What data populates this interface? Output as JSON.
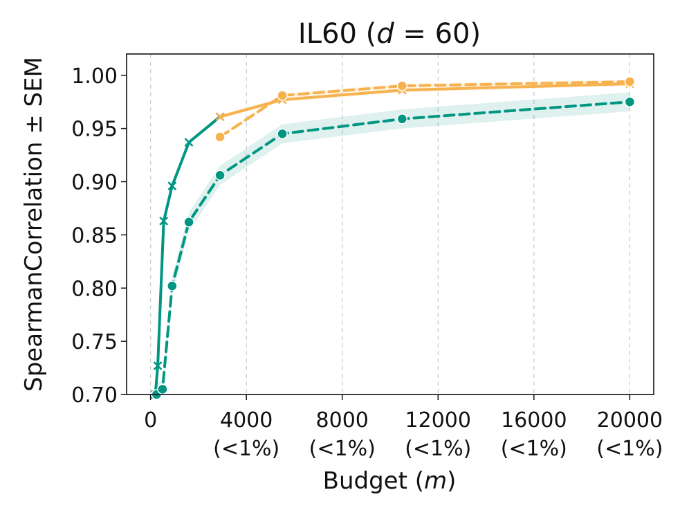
{
  "chart_data": {
    "type": "line",
    "title": "IL60 (d = 60)",
    "title_parts": {
      "prefix": "IL60 (",
      "var": "d",
      "suffix": " = 60)"
    },
    "xlabel": "Budget (m)",
    "xlabel_parts": {
      "prefix": "Budget (",
      "var": "m",
      "suffix": ")"
    },
    "ylabel": "SpearmanCorrelation ± SEM",
    "xlim": [
      -1000,
      21000
    ],
    "ylim": [
      0.7,
      1.02
    ],
    "xticks": [
      {
        "value": 0,
        "label": "0",
        "sub": ""
      },
      {
        "value": 4000,
        "label": "4000",
        "sub": "(<1%)"
      },
      {
        "value": 8000,
        "label": "8000",
        "sub": "(<1%)"
      },
      {
        "value": 12000,
        "label": "12000",
        "sub": "(<1%)"
      },
      {
        "value": 16000,
        "label": "16000",
        "sub": "(<1%)"
      },
      {
        "value": 20000,
        "label": "20000",
        "sub": "(<1%)"
      }
    ],
    "yticks": [
      {
        "value": 0.7,
        "label": "0.70"
      },
      {
        "value": 0.75,
        "label": "0.75"
      },
      {
        "value": 0.8,
        "label": "0.80"
      },
      {
        "value": 0.85,
        "label": "0.85"
      },
      {
        "value": 0.9,
        "label": "0.90"
      },
      {
        "value": 0.95,
        "label": "0.95"
      },
      {
        "value": 1.0,
        "label": "1.00"
      }
    ],
    "grid": "vertical-dashed",
    "series": [
      {
        "name": "teal-solid-x",
        "color": "#009682",
        "dash": "solid",
        "marker": "x",
        "points": [
          {
            "x": 200,
            "y": 0.7
          },
          {
            "x": 300,
            "y": 0.727
          },
          {
            "x": 550,
            "y": 0.863
          },
          {
            "x": 900,
            "y": 0.896
          },
          {
            "x": 1600,
            "y": 0.937
          },
          {
            "x": 2900,
            "y": 0.961
          }
        ],
        "band": 0.002
      },
      {
        "name": "teal-dashed-dot",
        "color": "#009682",
        "dash": "dashed",
        "marker": "circle",
        "points": [
          {
            "x": 250,
            "y": 0.7
          },
          {
            "x": 500,
            "y": 0.705
          },
          {
            "x": 900,
            "y": 0.802
          },
          {
            "x": 1600,
            "y": 0.862
          },
          {
            "x": 2900,
            "y": 0.906
          },
          {
            "x": 5500,
            "y": 0.945
          },
          {
            "x": 10500,
            "y": 0.959
          },
          {
            "x": 20000,
            "y": 0.975
          }
        ],
        "band": 0.009
      },
      {
        "name": "orange-solid-x",
        "color": "#f6b24f",
        "dash": "solid",
        "marker": "x",
        "points": [
          {
            "x": 2900,
            "y": 0.961
          },
          {
            "x": 5500,
            "y": 0.977
          },
          {
            "x": 10500,
            "y": 0.986
          },
          {
            "x": 20000,
            "y": 0.992
          }
        ],
        "band": 0.002
      },
      {
        "name": "orange-dashed-dot",
        "color": "#f6b24f",
        "dash": "dashed",
        "marker": "circle",
        "points": [
          {
            "x": 2900,
            "y": 0.942
          },
          {
            "x": 5500,
            "y": 0.981
          },
          {
            "x": 10500,
            "y": 0.99
          },
          {
            "x": 20000,
            "y": 0.994
          }
        ],
        "band": 0.002
      }
    ]
  }
}
